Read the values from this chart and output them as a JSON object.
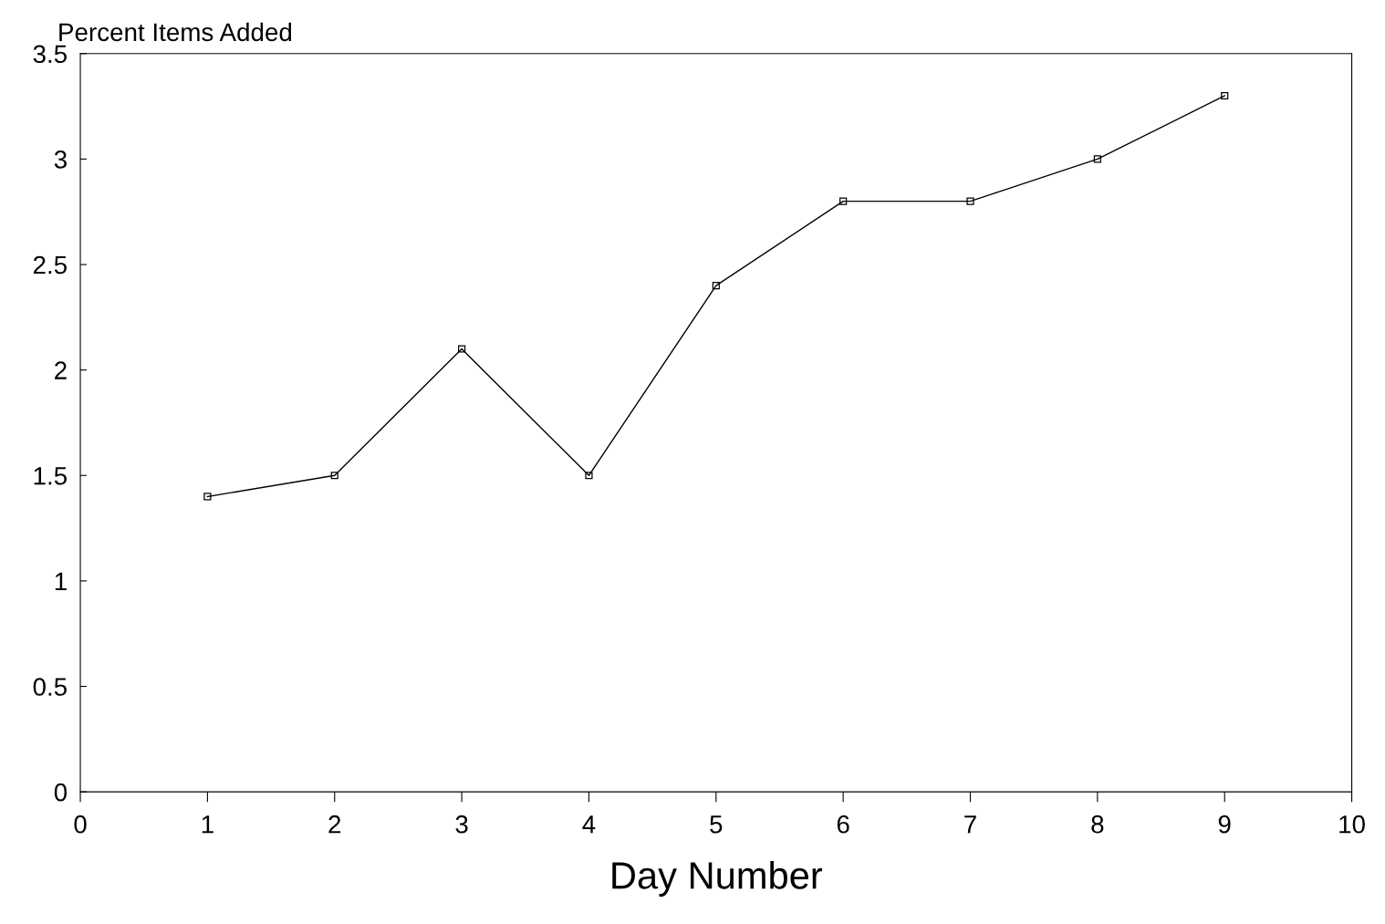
{
  "chart_data": {
    "type": "line",
    "ylabel": "Percent Items Added",
    "xlabel": "Day Number",
    "x": [
      1,
      2,
      3,
      4,
      5,
      6,
      7,
      8,
      9
    ],
    "series": [
      {
        "color": "#000000",
        "values": [
          1.4,
          1.5,
          2.1,
          1.5,
          2.4,
          2.8,
          2.8,
          3.0,
          3.3
        ]
      }
    ],
    "xlim": [
      0,
      10
    ],
    "xticks": [
      0,
      1,
      2,
      3,
      4,
      5,
      6,
      7,
      8,
      9,
      10
    ],
    "ylim": [
      0,
      3.5
    ],
    "yticks": [
      0,
      0.5,
      1,
      1.5,
      2,
      2.5,
      3,
      3.5
    ],
    "marker": "square",
    "line_style": "solid",
    "grid": false,
    "legend": false
  }
}
